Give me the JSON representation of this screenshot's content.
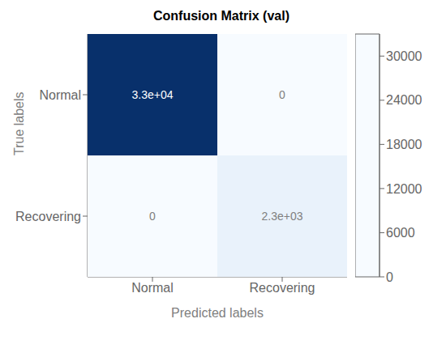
{
  "chart_data": {
    "type": "heatmap",
    "title": "Confusion Matrix (val)",
    "xlabel": "Predicted labels",
    "ylabel": "True labels",
    "categories": [
      "Normal",
      "Recovering"
    ],
    "y_categories": [
      "Normal",
      "Recovering"
    ],
    "values": [
      [
        33000,
        0
      ],
      [
        0,
        2300
      ]
    ],
    "value_labels": [
      [
        "3.3e+04",
        "0"
      ],
      [
        "0",
        "2.3e+03"
      ]
    ],
    "data_labels": true,
    "colorbar_range": [
      0,
      33000
    ],
    "colorbar_ticks": [
      0,
      6000,
      12000,
      18000,
      24000,
      30000
    ]
  }
}
